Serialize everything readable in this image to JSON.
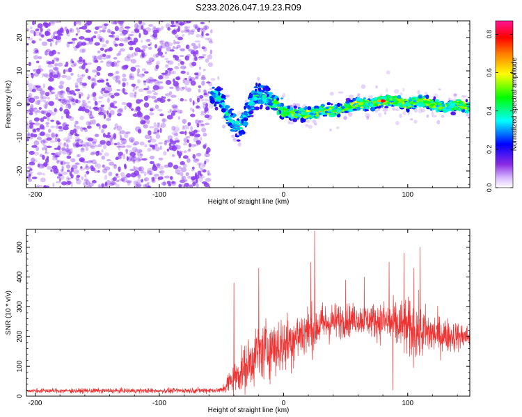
{
  "figure_title": "S233.2026.047.19.23.R09",
  "colors": {
    "snr_line": "#ee3333",
    "spectrogram_noise": "#8a3cf0",
    "axis": "#000000"
  },
  "chart_data": [
    {
      "type": "heatmap",
      "panel": "top",
      "xlabel": "Height of straight line (km)",
      "ylabel": "Frequency (Hz)",
      "xlim": [
        -207,
        150
      ],
      "ylim": [
        -25,
        25
      ],
      "xticks": [
        -200,
        -100,
        0,
        100
      ],
      "yticks": [
        -20,
        -10,
        0,
        10,
        20
      ],
      "colorbar": {
        "label": "Normalized spectral amplitude",
        "range": [
          0.0,
          0.87
        ],
        "ticks": [
          "0.0",
          "0.2",
          "0.4",
          "0.6",
          "0.8"
        ],
        "tick_values": [
          0.0,
          0.2,
          0.4,
          0.6,
          0.8
        ],
        "colormap": [
          "#ffffff",
          "#8a2be2",
          "#0000ff",
          "#00ffff",
          "#00ff00",
          "#ffff00",
          "#ff8000",
          "#ff0000",
          "#ff1493"
        ]
      },
      "regions": [
        {
          "name": "noise",
          "x_range": [
            -207,
            -58
          ],
          "freq_range": [
            -25,
            25
          ],
          "amplitude": 0.05
        },
        {
          "name": "signal-trace",
          "x_range": [
            -58,
            150
          ],
          "amplitude_peak": 0.87,
          "peak_at": [
            80,
            1
          ]
        }
      ],
      "signal_centerline": {
        "x": [
          -58,
          -50,
          -45,
          -40,
          -35,
          -30,
          -25,
          -20,
          -15,
          -10,
          -5,
          0,
          10,
          20,
          30,
          40,
          50,
          60,
          70,
          80,
          90,
          100,
          110,
          120,
          130,
          140,
          150
        ],
        "freq": [
          4,
          1,
          -3,
          -6,
          -7,
          -3,
          1,
          3,
          2,
          1,
          0,
          -2,
          -3,
          -3,
          -2,
          -2,
          -1,
          0,
          0,
          1,
          1,
          0,
          1,
          0,
          -1,
          0,
          -1
        ]
      }
    },
    {
      "type": "line",
      "panel": "bottom",
      "xlabel": "Height of straight line (km)",
      "ylabel": "SNR (10 * v/v)",
      "xlim": [
        -207,
        150
      ],
      "ylim": [
        0,
        560
      ],
      "xticks": [
        -200,
        -100,
        0,
        100
      ],
      "yticks": [
        0,
        100,
        200,
        300,
        400,
        500
      ],
      "series": [
        {
          "name": "SNR",
          "envelope_x": [
            -207,
            -100,
            -50,
            -45,
            -40,
            -30,
            -20,
            -10,
            0,
            10,
            20,
            30,
            40,
            50,
            60,
            70,
            80,
            90,
            100,
            110,
            120,
            130,
            140,
            150
          ],
          "envelope_mean": [
            18,
            18,
            20,
            40,
            60,
            100,
            150,
            165,
            170,
            200,
            220,
            240,
            250,
            255,
            260,
            255,
            250,
            240,
            225,
            215,
            210,
            205,
            200,
            200
          ],
          "envelope_spread": [
            8,
            9,
            10,
            40,
            60,
            90,
            110,
            110,
            110,
            100,
            95,
            80,
            70,
            60,
            55,
            60,
            75,
            90,
            110,
            110,
            80,
            65,
            55,
            40
          ],
          "spikes": [
            [
              -40,
              380
            ],
            [
              25,
              555
            ],
            [
              22,
              450
            ],
            [
              -20,
              430
            ],
            [
              85,
              450
            ],
            [
              97,
              480
            ],
            [
              110,
              500
            ],
            [
              105,
              430
            ],
            [
              50,
              390
            ],
            [
              65,
              400
            ],
            [
              88,
              20
            ]
          ]
        }
      ]
    }
  ]
}
